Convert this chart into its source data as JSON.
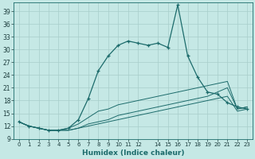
{
  "xlabel": "Humidex (Indice chaleur)",
  "bg_color": "#c5e8e5",
  "grid_color": "#a8ceca",
  "line_color": "#1c6b6b",
  "x_values": [
    0,
    1,
    2,
    3,
    4,
    5,
    6,
    7,
    8,
    9,
    10,
    11,
    12,
    13,
    14,
    15,
    16,
    17,
    18,
    19,
    20,
    21,
    22,
    23
  ],
  "series1": [
    13.0,
    12.0,
    11.5,
    11.0,
    11.0,
    11.5,
    13.5,
    18.5,
    25.0,
    28.5,
    31.0,
    32.0,
    31.5,
    31.0,
    31.5,
    30.5,
    40.5,
    28.5,
    23.5,
    20.0,
    19.5,
    17.5,
    16.5,
    16.0
  ],
  "series2": [
    13.0,
    12.0,
    11.5,
    11.0,
    11.0,
    11.0,
    11.5,
    12.0,
    12.5,
    13.0,
    13.5,
    14.0,
    14.5,
    15.0,
    15.5,
    16.0,
    16.5,
    17.0,
    17.5,
    18.0,
    18.5,
    19.0,
    15.5,
    16.0
  ],
  "series3": [
    13.0,
    12.0,
    11.5,
    11.0,
    11.0,
    11.0,
    11.5,
    12.5,
    13.0,
    13.5,
    14.5,
    15.0,
    15.5,
    16.0,
    16.5,
    17.0,
    17.5,
    18.0,
    18.5,
    19.0,
    20.0,
    21.0,
    16.0,
    16.5
  ],
  "series4": [
    13.0,
    12.0,
    11.5,
    11.0,
    11.0,
    11.5,
    12.5,
    14.0,
    15.5,
    16.0,
    17.0,
    17.5,
    18.0,
    18.5,
    19.0,
    19.5,
    20.0,
    20.5,
    21.0,
    21.5,
    22.0,
    22.5,
    16.0,
    16.5
  ],
  "ylim": [
    9,
    41
  ],
  "yticks": [
    9,
    12,
    15,
    18,
    21,
    24,
    27,
    30,
    33,
    36,
    39
  ],
  "xlim": [
    -0.5,
    23.5
  ],
  "xticks": [
    0,
    1,
    2,
    3,
    4,
    5,
    6,
    7,
    8,
    9,
    10,
    11,
    12,
    14,
    15,
    16,
    17,
    18,
    19,
    20,
    21,
    22,
    23
  ]
}
